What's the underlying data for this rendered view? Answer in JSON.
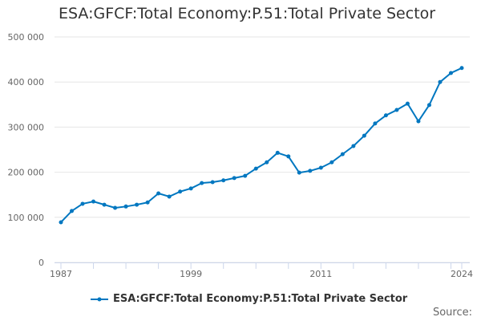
{
  "chart_data": {
    "type": "line",
    "title": "ESA:GFCF:Total Economy:P.51:Total Private Sector",
    "xlabel": "",
    "ylabel": "",
    "ylim": [
      0,
      500000
    ],
    "yticks": [
      0,
      100000,
      200000,
      300000,
      400000,
      500000
    ],
    "ytick_labels": [
      "0",
      "100 000",
      "200 000",
      "300 000",
      "400 000",
      "500 000"
    ],
    "xticks": [
      "1987",
      "1999",
      "2011",
      "2024"
    ],
    "grid": true,
    "legend_position": "bottom",
    "color": "#0077c0",
    "x": [
      1987,
      1988,
      1989,
      1990,
      1991,
      1992,
      1993,
      1994,
      1995,
      1996,
      1997,
      1998,
      1999,
      2000,
      2001,
      2002,
      2003,
      2004,
      2005,
      2006,
      2007,
      2008,
      2009,
      2010,
      2011,
      2012,
      2013,
      2014,
      2015,
      2016,
      2017,
      2018,
      2019,
      2020,
      2021,
      2022,
      2023,
      2024
    ],
    "series": [
      {
        "name": "ESA:GFCF:Total Economy:P.51:Total Private Sector",
        "values": [
          89000,
          114000,
          130000,
          135000,
          128000,
          121000,
          124000,
          128000,
          133000,
          153000,
          146000,
          157000,
          164000,
          176000,
          178000,
          182000,
          187000,
          192000,
          208000,
          222000,
          243000,
          235000,
          199000,
          203000,
          210000,
          222000,
          240000,
          258000,
          281000,
          308000,
          326000,
          338000,
          352000,
          313000,
          349000,
          400000,
          420000,
          431000
        ]
      }
    ]
  },
  "source_label": "Source:"
}
